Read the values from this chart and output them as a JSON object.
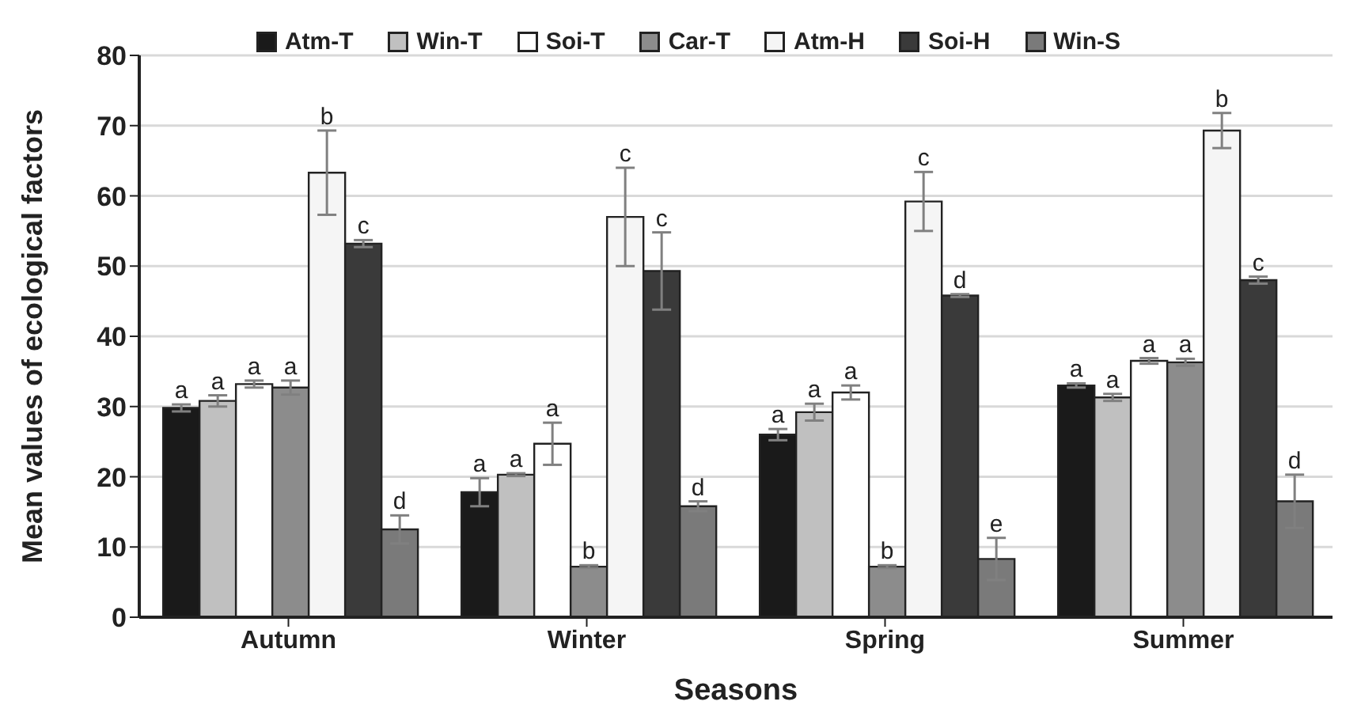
{
  "chart_data": {
    "type": "bar",
    "xlabel": "Seasons",
    "ylabel": "Mean values of ecological factors",
    "categories": [
      "Autumn",
      "Winter",
      "Spring",
      "Summer"
    ],
    "ylim": [
      0,
      80
    ],
    "yticks": [
      0,
      10,
      20,
      30,
      40,
      50,
      60,
      70,
      80
    ],
    "grid": "y",
    "legend": "top",
    "series": [
      {
        "name": "Atm-T",
        "color": "#1a1a1a",
        "values": [
          29.8,
          17.8,
          26,
          33
        ],
        "errors": [
          0.5,
          2,
          0.8,
          0.3
        ],
        "value_labels": [
          "a",
          "a",
          "a",
          "a"
        ]
      },
      {
        "name": "Win-T",
        "color": "#c0c0c0",
        "values": [
          30.8,
          20.3,
          29.2,
          31.3
        ],
        "errors": [
          0.8,
          0.2,
          1.2,
          0.5
        ],
        "value_labels": [
          "a",
          "a",
          "a",
          "a"
        ]
      },
      {
        "name": "Soi-T",
        "color": "#ffffff",
        "values": [
          33.2,
          24.7,
          32,
          36.5
        ],
        "errors": [
          0.5,
          3,
          1,
          0.4
        ],
        "value_labels": [
          "a",
          "a",
          "a",
          "a"
        ]
      },
      {
        "name": "Car-T",
        "color": "#8c8c8c",
        "values": [
          32.7,
          7.2,
          7.2,
          36.3
        ],
        "errors": [
          1,
          0.2,
          0.2,
          0.5
        ],
        "value_labels": [
          "a",
          "b",
          "b",
          "a"
        ]
      },
      {
        "name": "Atm-H",
        "color": "#f5f5f5",
        "values": [
          63.3,
          57,
          59.2,
          69.3
        ],
        "errors": [
          6,
          7,
          4.2,
          2.5
        ],
        "value_labels": [
          "b",
          "c",
          "c",
          "b"
        ]
      },
      {
        "name": "Soi-H",
        "color": "#3a3a3a",
        "values": [
          53.2,
          49.3,
          45.8,
          48
        ],
        "errors": [
          0.5,
          5.5,
          0.2,
          0.5
        ],
        "value_labels": [
          "c",
          "c",
          "d",
          "c"
        ]
      },
      {
        "name": "Win-S",
        "color": "#7a7a7a",
        "values": [
          12.5,
          15.8,
          8.3,
          16.5
        ],
        "errors": [
          2,
          0.7,
          3,
          3.8
        ],
        "value_labels": [
          "d",
          "d",
          "e",
          "d"
        ]
      }
    ]
  }
}
